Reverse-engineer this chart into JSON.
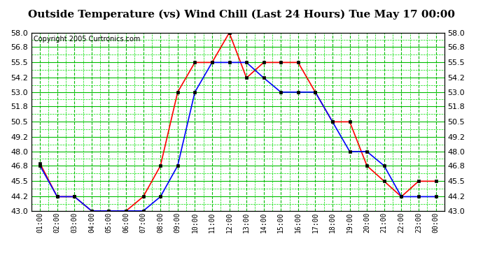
{
  "title": "Outside Temperature (vs) Wind Chill (Last 24 Hours) Tue May 17 00:00",
  "copyright": "Copyright 2005 Curtronics.com",
  "x_labels": [
    "01:00",
    "02:00",
    "03:00",
    "04:00",
    "05:00",
    "06:00",
    "07:00",
    "08:00",
    "09:00",
    "10:00",
    "11:00",
    "12:00",
    "13:00",
    "14:00",
    "15:00",
    "16:00",
    "17:00",
    "18:00",
    "19:00",
    "20:00",
    "21:00",
    "22:00",
    "23:00",
    "00:00"
  ],
  "ylim": [
    43.0,
    58.0
  ],
  "yticks": [
    43.0,
    44.2,
    45.5,
    46.8,
    48.0,
    49.2,
    50.5,
    51.8,
    53.0,
    54.2,
    55.5,
    56.8,
    58.0
  ],
  "red_data": [
    47.0,
    44.2,
    44.2,
    43.0,
    43.0,
    43.0,
    44.2,
    46.8,
    53.0,
    55.5,
    55.5,
    58.0,
    54.2,
    55.5,
    55.5,
    55.5,
    53.0,
    50.5,
    50.5,
    46.8,
    45.5,
    44.2,
    45.5,
    45.5
  ],
  "blue_data": [
    46.8,
    44.2,
    44.2,
    43.0,
    43.0,
    43.0,
    43.0,
    44.2,
    46.8,
    53.0,
    55.5,
    55.5,
    55.5,
    54.2,
    53.0,
    53.0,
    53.0,
    50.5,
    48.0,
    48.0,
    46.8,
    44.2,
    44.2,
    44.2
  ],
  "red_color": "#ff0000",
  "blue_color": "#0000ff",
  "bg_color": "#ffffff",
  "plot_bg_color": "#ffffff",
  "grid_solid_color": "#00bb00",
  "grid_dash_color": "#00dd00",
  "title_fontsize": 11,
  "copyright_fontsize": 7,
  "tick_fontsize": 8,
  "xtick_fontsize": 7
}
